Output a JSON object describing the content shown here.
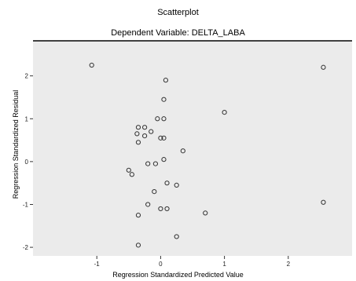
{
  "chart_data": {
    "type": "scatter",
    "title": "Scatterplot",
    "subtitle": "Dependent Variable: DELTA_LABA",
    "xlabel": "Regression Standardized Predicted Value",
    "ylabel": "Regression Standardized Residual",
    "xlim": [
      -2.0,
      3.0
    ],
    "ylim": [
      -2.2,
      2.8
    ],
    "x_ticks": [
      -1,
      0,
      1,
      2
    ],
    "y_ticks": [
      -2,
      -1,
      0,
      1,
      2
    ],
    "grid": false,
    "marker": "circle-open",
    "colors": {
      "plot_bg": "#ebebeb",
      "marker": "#333333",
      "frame": "#000000"
    },
    "points": [
      {
        "x": -1.08,
        "y": 2.25
      },
      {
        "x": 2.55,
        "y": 2.2
      },
      {
        "x": 0.08,
        "y": 1.9
      },
      {
        "x": 0.05,
        "y": 1.45
      },
      {
        "x": 1.0,
        "y": 1.15
      },
      {
        "x": -0.05,
        "y": 1.0
      },
      {
        "x": 0.05,
        "y": 1.0
      },
      {
        "x": -0.35,
        "y": 0.8
      },
      {
        "x": -0.25,
        "y": 0.8
      },
      {
        "x": -0.37,
        "y": 0.65
      },
      {
        "x": -0.25,
        "y": 0.6
      },
      {
        "x": -0.15,
        "y": 0.7
      },
      {
        "x": 0.0,
        "y": 0.55
      },
      {
        "x": 0.05,
        "y": 0.55
      },
      {
        "x": -0.35,
        "y": 0.45
      },
      {
        "x": 0.35,
        "y": 0.25
      },
      {
        "x": 0.05,
        "y": 0.05
      },
      {
        "x": -0.2,
        "y": -0.05
      },
      {
        "x": -0.08,
        "y": -0.05
      },
      {
        "x": -0.5,
        "y": -0.2
      },
      {
        "x": -0.45,
        "y": -0.3
      },
      {
        "x": 0.1,
        "y": -0.5
      },
      {
        "x": 0.25,
        "y": -0.55
      },
      {
        "x": -0.1,
        "y": -0.7
      },
      {
        "x": -0.2,
        "y": -1.0
      },
      {
        "x": 0.0,
        "y": -1.1
      },
      {
        "x": 0.1,
        "y": -1.1
      },
      {
        "x": -0.35,
        "y": -1.25
      },
      {
        "x": 0.7,
        "y": -1.2
      },
      {
        "x": 2.55,
        "y": -0.95
      },
      {
        "x": 0.25,
        "y": -1.75
      },
      {
        "x": -0.35,
        "y": -1.95
      }
    ]
  }
}
